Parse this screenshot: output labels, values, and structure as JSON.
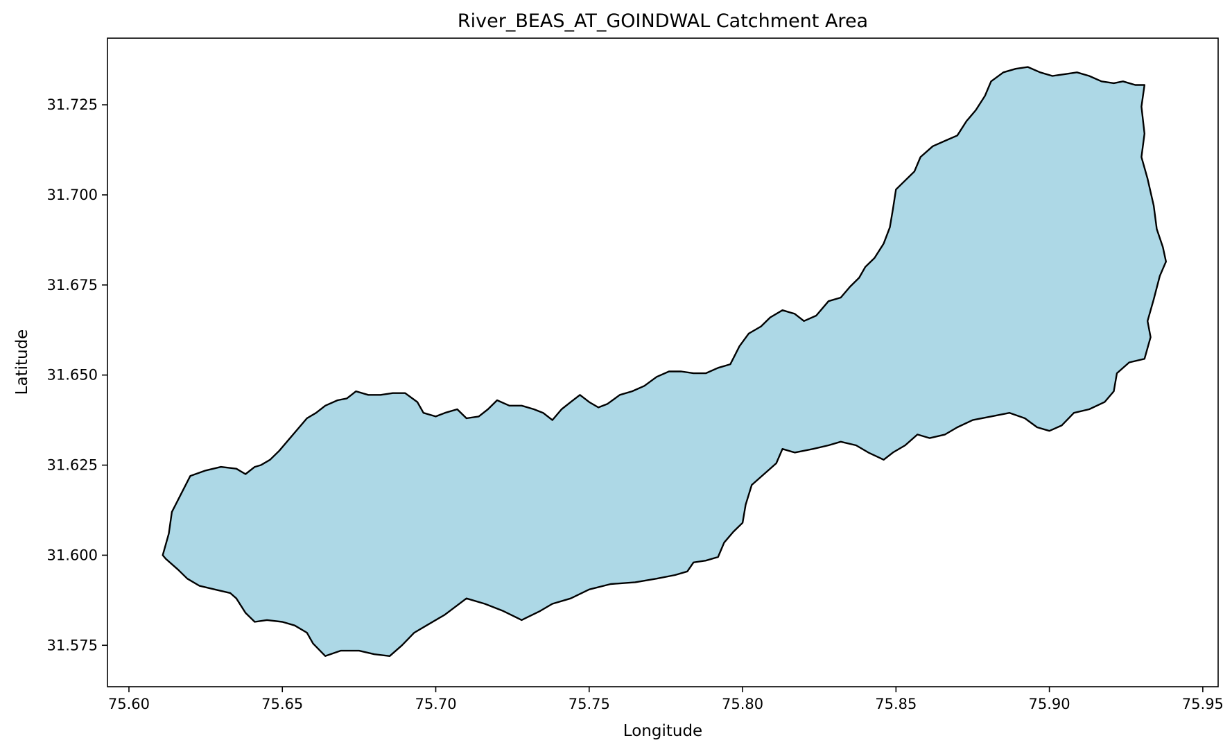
{
  "chart_data": {
    "type": "area",
    "title": "River_BEAS_AT_GOINDWAL Catchment Area",
    "xlabel": "Longitude",
    "ylabel": "Latitude",
    "xlim": [
      75.593,
      75.955
    ],
    "ylim": [
      31.5635,
      31.7435
    ],
    "x_ticks": [
      "75.60",
      "75.65",
      "75.70",
      "75.75",
      "75.80",
      "75.85",
      "75.90",
      "75.95"
    ],
    "y_ticks": [
      "31.575",
      "31.600",
      "31.625",
      "31.650",
      "31.675",
      "31.700",
      "31.725"
    ],
    "grid": false,
    "legend": "none",
    "fill_color": "#add8e6",
    "edge_color": "#000000",
    "series": [
      {
        "boundary": [
          [
            75.611,
            31.6
          ],
          [
            75.613,
            31.606
          ],
          [
            75.614,
            31.612
          ],
          [
            75.617,
            31.617
          ],
          [
            75.62,
            31.622
          ],
          [
            75.625,
            31.6235
          ],
          [
            75.63,
            31.6245
          ],
          [
            75.635,
            31.624
          ],
          [
            75.638,
            31.6225
          ],
          [
            75.641,
            31.6245
          ],
          [
            75.643,
            31.625
          ],
          [
            75.646,
            31.6265
          ],
          [
            75.649,
            31.629
          ],
          [
            75.652,
            31.632
          ],
          [
            75.655,
            31.635
          ],
          [
            75.658,
            31.638
          ],
          [
            75.661,
            31.6395
          ],
          [
            75.664,
            31.6415
          ],
          [
            75.668,
            31.643
          ],
          [
            75.671,
            31.6435
          ],
          [
            75.674,
            31.6455
          ],
          [
            75.678,
            31.6445
          ],
          [
            75.682,
            31.6445
          ],
          [
            75.686,
            31.645
          ],
          [
            75.69,
            31.645
          ],
          [
            75.694,
            31.6425
          ],
          [
            75.696,
            31.6395
          ],
          [
            75.7,
            31.6385
          ],
          [
            75.703,
            31.6395
          ],
          [
            75.707,
            31.6405
          ],
          [
            75.71,
            31.638
          ],
          [
            75.714,
            31.6385
          ],
          [
            75.717,
            31.6405
          ],
          [
            75.72,
            31.643
          ],
          [
            75.724,
            31.6415
          ],
          [
            75.728,
            31.6415
          ],
          [
            75.732,
            31.6405
          ],
          [
            75.735,
            31.6395
          ],
          [
            75.738,
            31.6375
          ],
          [
            75.741,
            31.6405
          ],
          [
            75.744,
            31.6425
          ],
          [
            75.747,
            31.6445
          ],
          [
            75.75,
            31.6425
          ],
          [
            75.753,
            31.641
          ],
          [
            75.756,
            31.642
          ],
          [
            75.76,
            31.6445
          ],
          [
            75.764,
            31.6455
          ],
          [
            75.768,
            31.647
          ],
          [
            75.772,
            31.6495
          ],
          [
            75.776,
            31.651
          ],
          [
            75.78,
            31.651
          ],
          [
            75.784,
            31.6505
          ],
          [
            75.788,
            31.6505
          ],
          [
            75.792,
            31.652
          ],
          [
            75.796,
            31.653
          ],
          [
            75.799,
            31.658
          ],
          [
            75.802,
            31.6615
          ],
          [
            75.806,
            31.6635
          ],
          [
            75.809,
            31.666
          ],
          [
            75.813,
            31.668
          ],
          [
            75.817,
            31.667
          ],
          [
            75.82,
            31.665
          ],
          [
            75.824,
            31.6665
          ],
          [
            75.828,
            31.6705
          ],
          [
            75.832,
            31.6715
          ],
          [
            75.835,
            31.6745
          ],
          [
            75.838,
            31.677
          ],
          [
            75.84,
            31.68
          ],
          [
            75.843,
            31.6825
          ],
          [
            75.846,
            31.6865
          ],
          [
            75.848,
            31.691
          ],
          [
            75.849,
            31.696
          ],
          [
            75.85,
            31.7015
          ],
          [
            75.853,
            31.704
          ],
          [
            75.856,
            31.7065
          ],
          [
            75.858,
            31.7105
          ],
          [
            75.862,
            31.7135
          ],
          [
            75.866,
            31.715
          ],
          [
            75.87,
            31.7165
          ],
          [
            75.873,
            31.7205
          ],
          [
            75.876,
            31.7235
          ],
          [
            75.879,
            31.7275
          ],
          [
            75.881,
            31.7315
          ],
          [
            75.885,
            31.734
          ],
          [
            75.889,
            31.735
          ],
          [
            75.893,
            31.7355
          ],
          [
            75.897,
            31.734
          ],
          [
            75.901,
            31.733
          ],
          [
            75.905,
            31.7335
          ],
          [
            75.909,
            31.734
          ],
          [
            75.913,
            31.733
          ],
          [
            75.917,
            31.7315
          ],
          [
            75.921,
            31.731
          ],
          [
            75.924,
            31.7315
          ],
          [
            75.928,
            31.7305
          ],
          [
            75.931,
            31.7305
          ],
          [
            75.93,
            31.7245
          ],
          [
            75.931,
            31.717
          ],
          [
            75.93,
            31.7105
          ],
          [
            75.932,
            31.7045
          ],
          [
            75.934,
            31.697
          ],
          [
            75.935,
            31.6905
          ],
          [
            75.937,
            31.6855
          ],
          [
            75.938,
            31.6815
          ],
          [
            75.936,
            31.6775
          ],
          [
            75.934,
            31.671
          ],
          [
            75.932,
            31.665
          ],
          [
            75.933,
            31.6605
          ],
          [
            75.931,
            31.6545
          ],
          [
            75.926,
            31.6535
          ],
          [
            75.922,
            31.6505
          ],
          [
            75.921,
            31.6455
          ],
          [
            75.918,
            31.6425
          ],
          [
            75.913,
            31.6405
          ],
          [
            75.908,
            31.6395
          ],
          [
            75.904,
            31.636
          ],
          [
            75.9,
            31.6345
          ],
          [
            75.896,
            31.6355
          ],
          [
            75.892,
            31.638
          ],
          [
            75.887,
            31.6395
          ],
          [
            75.881,
            31.6385
          ],
          [
            75.875,
            31.6375
          ],
          [
            75.87,
            31.6355
          ],
          [
            75.866,
            31.6335
          ],
          [
            75.861,
            31.6325
          ],
          [
            75.857,
            31.6335
          ],
          [
            75.853,
            31.6305
          ],
          [
            75.849,
            31.6285
          ],
          [
            75.846,
            31.6265
          ],
          [
            75.841,
            31.6285
          ],
          [
            75.837,
            31.6305
          ],
          [
            75.832,
            31.6315
          ],
          [
            75.828,
            31.6305
          ],
          [
            75.823,
            31.6295
          ],
          [
            75.817,
            31.6285
          ],
          [
            75.813,
            31.6295
          ],
          [
            75.811,
            31.6255
          ],
          [
            75.807,
            31.6225
          ],
          [
            75.803,
            31.6195
          ],
          [
            75.801,
            31.614
          ],
          [
            75.8,
            31.609
          ],
          [
            75.797,
            31.6065
          ],
          [
            75.794,
            31.6035
          ],
          [
            75.792,
            31.5995
          ],
          [
            75.788,
            31.5985
          ],
          [
            75.784,
            31.598
          ],
          [
            75.782,
            31.5955
          ],
          [
            75.778,
            31.5945
          ],
          [
            75.772,
            31.5935
          ],
          [
            75.765,
            31.5925
          ],
          [
            75.757,
            31.592
          ],
          [
            75.75,
            31.5905
          ],
          [
            75.744,
            31.588
          ],
          [
            75.738,
            31.5865
          ],
          [
            75.734,
            31.5845
          ],
          [
            75.728,
            31.582
          ],
          [
            75.722,
            31.5845
          ],
          [
            75.716,
            31.5865
          ],
          [
            75.71,
            31.588
          ],
          [
            75.703,
            31.5835
          ],
          [
            75.697,
            31.5805
          ],
          [
            75.693,
            31.5785
          ],
          [
            75.689,
            31.575
          ],
          [
            75.685,
            31.572
          ],
          [
            75.68,
            31.5725
          ],
          [
            75.675,
            31.5735
          ],
          [
            75.669,
            31.5735
          ],
          [
            75.664,
            31.572
          ],
          [
            75.66,
            31.5755
          ],
          [
            75.658,
            31.5785
          ],
          [
            75.654,
            31.5805
          ],
          [
            75.65,
            31.5815
          ],
          [
            75.645,
            31.582
          ],
          [
            75.641,
            31.5815
          ],
          [
            75.638,
            31.584
          ],
          [
            75.635,
            31.588
          ],
          [
            75.633,
            31.5895
          ],
          [
            75.628,
            31.5905
          ],
          [
            75.623,
            31.5915
          ],
          [
            75.619,
            31.5935
          ],
          [
            75.616,
            31.596
          ],
          [
            75.612,
            31.599
          ],
          [
            75.611,
            31.6
          ]
        ]
      }
    ]
  }
}
